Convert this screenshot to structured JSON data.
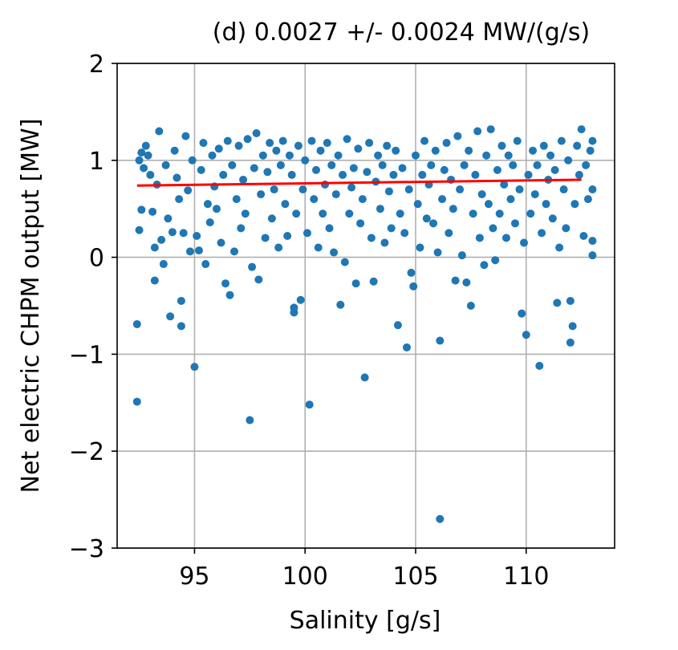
{
  "chart_data": {
    "type": "scatter",
    "title": "(d)   0.0027 +/- 0.0024  MW/(g/s)",
    "xlabel": "Salinity [g/s]",
    "ylabel": "Net electric CHPM output [MW]",
    "xlim": [
      91.5,
      114.0
    ],
    "ylim": [
      -3,
      2
    ],
    "xticks": [
      95,
      100,
      105,
      110
    ],
    "xtick_labels": [
      "95",
      "100",
      "105",
      "110"
    ],
    "yticks": [
      -3,
      -2,
      -1,
      0,
      1,
      2
    ],
    "ytick_labels": [
      "−3",
      "−2",
      "−1",
      "0",
      "1",
      "2"
    ],
    "grid": true,
    "legend": "none",
    "colors": {
      "points": "#1f77b4",
      "fit": "#ff0000",
      "grid": "#b0b0b0"
    },
    "series": [
      {
        "kind": "points",
        "points": [
          [
            92.4,
            -1.49
          ],
          [
            92.4,
            -0.69
          ],
          [
            92.5,
            0.28
          ],
          [
            92.6,
            0.49
          ],
          [
            92.5,
            1.0
          ],
          [
            92.6,
            1.08
          ],
          [
            92.7,
            0.92
          ],
          [
            92.8,
            1.15
          ],
          [
            92.9,
            1.05
          ],
          [
            93.0,
            0.85
          ],
          [
            93.1,
            0.47
          ],
          [
            93.2,
            0.1
          ],
          [
            93.2,
            -0.24
          ],
          [
            93.3,
            0.75
          ],
          [
            93.4,
            1.3
          ],
          [
            93.5,
            0.18
          ],
          [
            93.6,
            -0.07
          ],
          [
            93.7,
            0.95
          ],
          [
            93.8,
            0.4
          ],
          [
            93.9,
            -0.61
          ],
          [
            94.0,
            0.26
          ],
          [
            94.1,
            1.1
          ],
          [
            94.2,
            0.82
          ],
          [
            94.3,
            0.6
          ],
          [
            94.4,
            -0.45
          ],
          [
            94.4,
            -0.71
          ],
          [
            94.5,
            0.25
          ],
          [
            94.6,
            1.25
          ],
          [
            94.7,
            0.69
          ],
          [
            94.8,
            0.06
          ],
          [
            94.9,
            1.0
          ],
          [
            95.0,
            -1.13
          ],
          [
            95.1,
            0.22
          ],
          [
            95.2,
            0.07
          ],
          [
            95.3,
            0.9
          ],
          [
            95.4,
            1.18
          ],
          [
            95.5,
            -0.07
          ],
          [
            95.6,
            0.55
          ],
          [
            95.7,
            0.36
          ],
          [
            95.8,
            1.05
          ],
          [
            95.9,
            0.73
          ],
          [
            96.0,
            0.5
          ],
          [
            96.1,
            1.12
          ],
          [
            96.2,
            0.15
          ],
          [
            96.3,
            0.85
          ],
          [
            96.4,
            -0.27
          ],
          [
            96.5,
            1.2
          ],
          [
            96.6,
            -0.39
          ],
          [
            96.7,
            0.95
          ],
          [
            96.8,
            0.06
          ],
          [
            96.9,
            0.6
          ],
          [
            97.0,
            1.15
          ],
          [
            97.1,
            0.3
          ],
          [
            97.2,
            0.8
          ],
          [
            97.3,
            0.45
          ],
          [
            97.4,
            1.22
          ],
          [
            97.5,
            -1.68
          ],
          [
            97.6,
            -0.1
          ],
          [
            97.7,
            0.92
          ],
          [
            97.8,
            1.28
          ],
          [
            97.9,
            -0.23
          ],
          [
            98.0,
            0.65
          ],
          [
            98.1,
            1.05
          ],
          [
            98.2,
            0.2
          ],
          [
            98.3,
            0.88
          ],
          [
            98.4,
            1.18
          ],
          [
            98.5,
            0.4
          ],
          [
            98.6,
            0.7
          ],
          [
            98.7,
            1.1
          ],
          [
            98.8,
            0.1
          ],
          [
            98.9,
            0.95
          ],
          [
            99.0,
            1.2
          ],
          [
            99.1,
            0.55
          ],
          [
            99.2,
            0.22
          ],
          [
            99.3,
            1.05
          ],
          [
            99.4,
            0.85
          ],
          [
            99.5,
            -0.52
          ],
          [
            99.5,
            -0.57
          ],
          [
            99.6,
            0.45
          ],
          [
            99.7,
            1.15
          ],
          [
            99.8,
            -0.44
          ],
          [
            99.9,
            0.7
          ],
          [
            100.0,
            1.0
          ],
          [
            100.1,
            0.25
          ],
          [
            100.2,
            -1.52
          ],
          [
            100.3,
            1.2
          ],
          [
            100.4,
            0.6
          ],
          [
            100.5,
            0.9
          ],
          [
            100.6,
            0.1
          ],
          [
            100.7,
            1.1
          ],
          [
            100.8,
            0.45
          ],
          [
            100.9,
            0.75
          ],
          [
            101.0,
            1.18
          ],
          [
            101.1,
            0.3
          ],
          [
            101.2,
            0.95
          ],
          [
            101.3,
            0.05
          ],
          [
            101.4,
            0.65
          ],
          [
            101.5,
            1.05
          ],
          [
            101.6,
            -0.49
          ],
          [
            101.7,
            0.85
          ],
          [
            101.8,
            -0.05
          ],
          [
            101.9,
            1.22
          ],
          [
            102.0,
            0.45
          ],
          [
            102.1,
            0.72
          ],
          [
            102.2,
            0.92
          ],
          [
            102.3,
            -0.27
          ],
          [
            102.4,
            1.12
          ],
          [
            102.5,
            0.35
          ],
          [
            102.6,
            0.6
          ],
          [
            102.7,
            -1.24
          ],
          [
            102.8,
            0.88
          ],
          [
            102.9,
            1.18
          ],
          [
            103.0,
            0.2
          ],
          [
            103.1,
            -0.25
          ],
          [
            103.2,
            0.78
          ],
          [
            103.3,
            1.05
          ],
          [
            103.4,
            0.5
          ],
          [
            103.5,
            0.95
          ],
          [
            103.6,
            0.15
          ],
          [
            103.7,
            1.15
          ],
          [
            103.8,
            0.68
          ],
          [
            103.9,
            0.3
          ],
          [
            104.0,
            0.85
          ],
          [
            104.1,
            1.1
          ],
          [
            104.2,
            -0.7
          ],
          [
            104.3,
            0.45
          ],
          [
            104.4,
            0.92
          ],
          [
            104.5,
            0.25
          ],
          [
            104.6,
            -0.93
          ],
          [
            104.7,
            0.7
          ],
          [
            104.8,
            -0.16
          ],
          [
            104.9,
            -0.3
          ],
          [
            105.0,
            1.05
          ],
          [
            105.1,
            0.55
          ],
          [
            105.2,
            0.1
          ],
          [
            105.3,
            0.85
          ],
          [
            105.4,
            1.2
          ],
          [
            105.5,
            0.4
          ],
          [
            105.6,
            0.75
          ],
          [
            105.7,
            0.95
          ],
          [
            105.8,
            0.35
          ],
          [
            105.9,
            1.1
          ],
          [
            106.0,
            0.05
          ],
          [
            106.1,
            -0.86
          ],
          [
            106.1,
            -2.7
          ],
          [
            106.2,
            0.6
          ],
          [
            106.3,
            0.9
          ],
          [
            106.4,
            1.18
          ],
          [
            106.5,
            0.25
          ],
          [
            106.6,
            0.8
          ],
          [
            106.7,
            0.5
          ],
          [
            106.8,
            -0.24
          ],
          [
            106.9,
            1.25
          ],
          [
            107.0,
            0.7
          ],
          [
            107.1,
            0.02
          ],
          [
            107.2,
            0.95
          ],
          [
            107.3,
            -0.26
          ],
          [
            107.4,
            1.1
          ],
          [
            107.5,
            -0.5
          ],
          [
            107.6,
            0.45
          ],
          [
            107.7,
            0.85
          ],
          [
            107.8,
            1.3
          ],
          [
            107.9,
            0.2
          ],
          [
            108.0,
            0.65
          ],
          [
            108.1,
            -0.08
          ],
          [
            108.2,
            1.05
          ],
          [
            108.3,
            0.55
          ],
          [
            108.4,
            1.32
          ],
          [
            108.5,
            0.3
          ],
          [
            108.6,
            -0.03
          ],
          [
            108.7,
            0.9
          ],
          [
            108.8,
            0.45
          ],
          [
            108.9,
            1.15
          ],
          [
            109.0,
            0.75
          ],
          [
            109.1,
            0.2
          ],
          [
            109.2,
            1.05
          ],
          [
            109.3,
            0.6
          ],
          [
            109.4,
            0.95
          ],
          [
            109.5,
            0.35
          ],
          [
            109.6,
            1.2
          ],
          [
            109.7,
            0.7
          ],
          [
            109.8,
            -0.58
          ],
          [
            109.9,
            0.15
          ],
          [
            110.0,
            -0.8
          ],
          [
            110.1,
            0.85
          ],
          [
            110.2,
            0.45
          ],
          [
            110.3,
            1.1
          ],
          [
            110.4,
            0.65
          ],
          [
            110.5,
            0.95
          ],
          [
            110.6,
            -1.12
          ],
          [
            110.7,
            0.25
          ],
          [
            110.8,
            1.15
          ],
          [
            110.9,
            0.55
          ],
          [
            111.0,
            0.8
          ],
          [
            111.1,
            1.05
          ],
          [
            111.2,
            0.4
          ],
          [
            111.3,
            0.9
          ],
          [
            111.4,
            -0.47
          ],
          [
            111.5,
            0.1
          ],
          [
            111.6,
            1.2
          ],
          [
            111.7,
            0.7
          ],
          [
            111.8,
            0.3
          ],
          [
            111.9,
            1.0
          ],
          [
            112.0,
            -0.45
          ],
          [
            112.0,
            -0.88
          ],
          [
            112.1,
            -0.71
          ],
          [
            112.2,
            0.55
          ],
          [
            112.3,
            1.15
          ],
          [
            112.4,
            0.85
          ],
          [
            112.5,
            1.32
          ],
          [
            112.6,
            0.22
          ],
          [
            112.7,
            0.95
          ],
          [
            112.8,
            0.6
          ],
          [
            112.9,
            1.1
          ],
          [
            113.0,
            0.02
          ],
          [
            113.0,
            0.17
          ],
          [
            113.0,
            0.7
          ],
          [
            113.0,
            1.2
          ]
        ]
      },
      {
        "kind": "fit-line",
        "points": [
          [
            92.4,
            0.74
          ],
          [
            112.5,
            0.8
          ]
        ]
      }
    ]
  }
}
